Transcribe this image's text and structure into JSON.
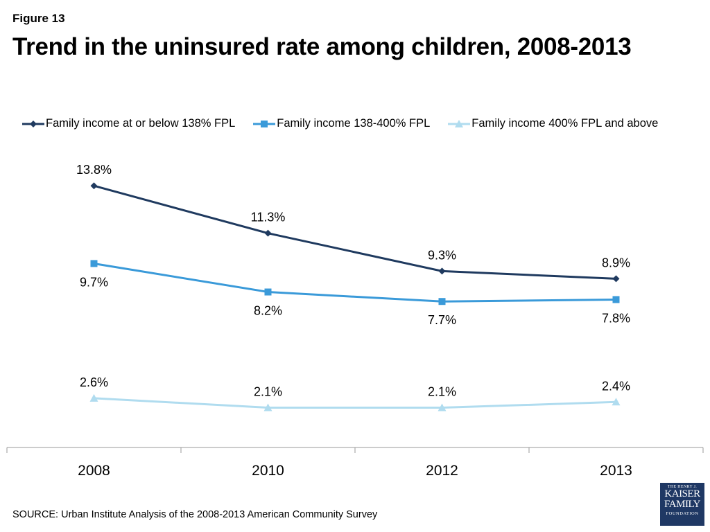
{
  "figure_label": "Figure 13",
  "title": "Trend in the uninsured rate among children, 2008-2013",
  "source": "SOURCE: Urban Institute Analysis of the 2008-2013 American Community Survey",
  "logo": {
    "line1": "THE HENRY J.",
    "line2": "KAISER",
    "line3": "FAMILY",
    "line4": "FOUNDATION",
    "color": "#1f3864"
  },
  "chart_data": {
    "type": "line",
    "categories": [
      "2008",
      "2010",
      "2012",
      "2013"
    ],
    "ylim": [
      0,
      16
    ],
    "grid": false,
    "legend_position": "top",
    "series": [
      {
        "name": "Family income at or below 138% FPL",
        "values": [
          13.8,
          11.3,
          9.3,
          8.9
        ],
        "labels": [
          "13.8%",
          "11.3%",
          "9.3%",
          "8.9%"
        ],
        "color": "#1f3a5f",
        "marker": "diamond",
        "label_position": "above"
      },
      {
        "name": "Family income 138-400% FPL",
        "values": [
          9.7,
          8.2,
          7.7,
          7.8
        ],
        "labels": [
          "9.7%",
          "8.2%",
          "7.7%",
          "7.8%"
        ],
        "color": "#3a9ad9",
        "marker": "square",
        "label_position": "below"
      },
      {
        "name": "Family income 400% FPL and above",
        "values": [
          2.6,
          2.1,
          2.1,
          2.4
        ],
        "labels": [
          "2.6%",
          "2.1%",
          "2.1%",
          "2.4%"
        ],
        "color": "#b0dcef",
        "marker": "triangle",
        "label_position": "above"
      }
    ]
  }
}
